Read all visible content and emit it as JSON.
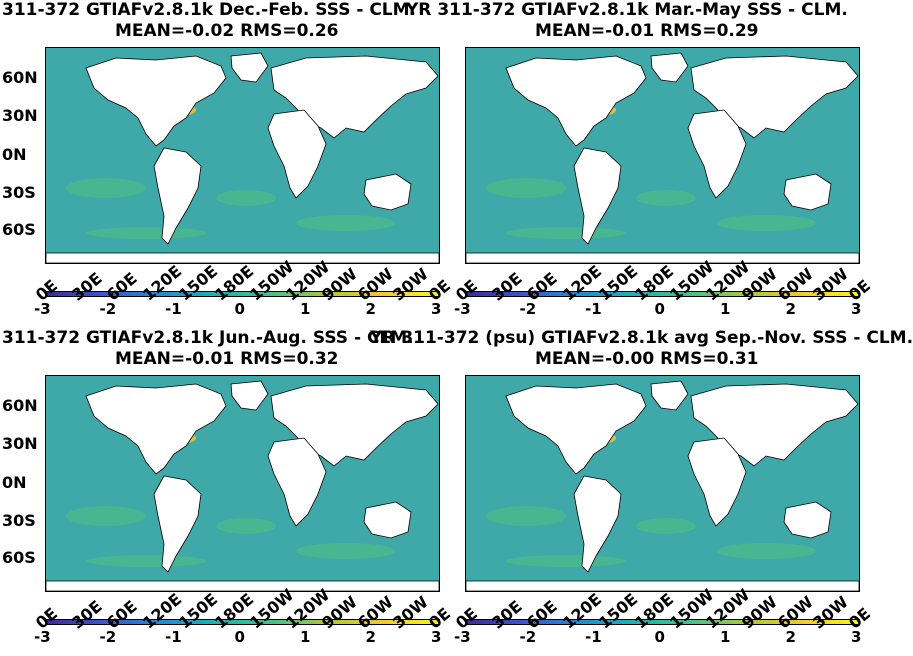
{
  "panels": [
    {
      "title_line1": "311-372 GTIAFv2.8.1k  Dec.-Feb. SSS - CLM.",
      "title_line2": "MEAN=-0.02   RMS=0.26"
    },
    {
      "title_line1": "YR 311-372 GTIAFv2.8.1k Mar.-May SSS - CLM.",
      "title_line2": "MEAN=-0.01   RMS=0.29"
    },
    {
      "title_line1": "311-372 GTIAFv2.8.1k Jun.-Aug. SSS - CLM.",
      "title_line2": "MEAN=-0.01   RMS=0.32"
    },
    {
      "title_line1": "YR 311-372 (psu) GTIAFv2.8.1k avg Sep.-Nov. SSS - CLM.",
      "title_line2": "MEAN=-0.00   RMS=0.31"
    }
  ],
  "lat_labels": [
    "60N",
    "30N",
    "0N",
    "30S",
    "60S"
  ],
  "lon_labels": [
    "0E",
    "30E",
    "60E",
    "120E",
    "150E",
    "180E",
    "150W",
    "120W",
    "90W",
    "60W",
    "30W",
    "0E"
  ],
  "colorbar_ticks": [
    "-3",
    "-2",
    "-1",
    "0",
    "1",
    "2",
    "3"
  ],
  "colors": {
    "ocean": "#3fa8a8",
    "land": "#ffffff",
    "anomaly_high": "#f3c82f",
    "anomaly_low": "#3b56d4"
  }
}
